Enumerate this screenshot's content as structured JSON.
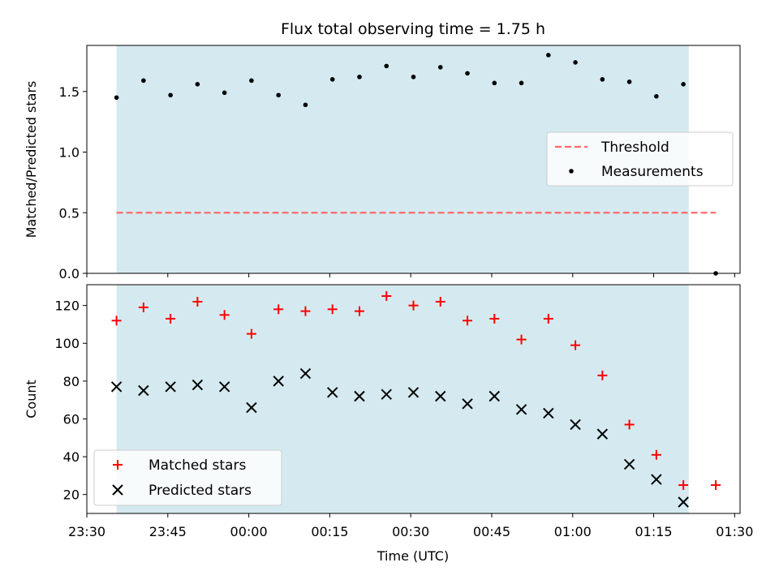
{
  "title": "Flux total observing time = 1.75 h",
  "colors": {
    "shade": "#d4eaf0",
    "threshold": "#ff6b6b",
    "measurement": "#000000",
    "matched": "#ff0000",
    "predicted": "#000000"
  },
  "chart_data": [
    {
      "type": "scatter",
      "panel": "top",
      "ylabel": "Matched/Predicted stars",
      "ylim": [
        0,
        1.88
      ],
      "yticks": [
        "0.0",
        "0.5",
        "1.0",
        "1.5"
      ],
      "x_unit": "minutes after 23:30 UTC",
      "xlim": [
        0,
        121
      ],
      "observing_window": [
        5.5,
        111.5
      ],
      "legend_position": "center-right",
      "threshold": {
        "name": "Threshold",
        "value": 0.5,
        "x": [
          5.5,
          116.5
        ]
      },
      "series": [
        {
          "name": "Measurements",
          "x": [
            5.5,
            10.5,
            15.5,
            20.5,
            25.5,
            30.5,
            35.5,
            40.5,
            45.5,
            50.5,
            55.5,
            60.5,
            65.5,
            70.5,
            75.5,
            80.5,
            85.5,
            90.5,
            95.5,
            100.5,
            105.5,
            110.5,
            116.5
          ],
          "y": [
            1.45,
            1.59,
            1.47,
            1.56,
            1.49,
            1.59,
            1.47,
            1.39,
            1.6,
            1.62,
            1.71,
            1.62,
            1.7,
            1.65,
            1.57,
            1.57,
            1.8,
            1.74,
            1.6,
            1.58,
            1.46,
            1.56,
            0.0
          ]
        }
      ]
    },
    {
      "type": "scatter",
      "panel": "bottom",
      "ylabel": "Count",
      "xlabel": "Time (UTC)",
      "ylim": [
        10,
        131
      ],
      "yticks": [
        "20",
        "40",
        "60",
        "80",
        "100",
        "120"
      ],
      "x_unit": "minutes after 23:30 UTC",
      "xlim": [
        0,
        121
      ],
      "observing_window": [
        5.5,
        111.5
      ],
      "xticks": [
        "23:30",
        "23:45",
        "00:00",
        "00:15",
        "00:30",
        "00:45",
        "01:00",
        "01:15",
        "01:30"
      ],
      "legend_position": "lower-left",
      "series": [
        {
          "name": "Matched stars",
          "marker": "plus",
          "x": [
            5.5,
            10.5,
            15.5,
            20.5,
            25.5,
            30.5,
            35.5,
            40.5,
            45.5,
            50.5,
            55.5,
            60.5,
            65.5,
            70.5,
            75.5,
            80.5,
            85.5,
            90.5,
            95.5,
            100.5,
            105.5,
            110.5,
            116.5
          ],
          "y": [
            112,
            119,
            113,
            122,
            115,
            105,
            118,
            117,
            118,
            117,
            125,
            120,
            122,
            112,
            113,
            102,
            113,
            99,
            83,
            57,
            41,
            25,
            25
          ]
        },
        {
          "name": "Predicted stars",
          "marker": "x",
          "x": [
            5.5,
            10.5,
            15.5,
            20.5,
            25.5,
            30.5,
            35.5,
            40.5,
            45.5,
            50.5,
            55.5,
            60.5,
            65.5,
            70.5,
            75.5,
            80.5,
            85.5,
            90.5,
            95.5,
            100.5,
            105.5,
            110.5
          ],
          "y": [
            77,
            75,
            77,
            78,
            77,
            66,
            80,
            84,
            74,
            72,
            73,
            74,
            72,
            68,
            72,
            65,
            63,
            57,
            52,
            36,
            28,
            16
          ]
        }
      ]
    }
  ]
}
